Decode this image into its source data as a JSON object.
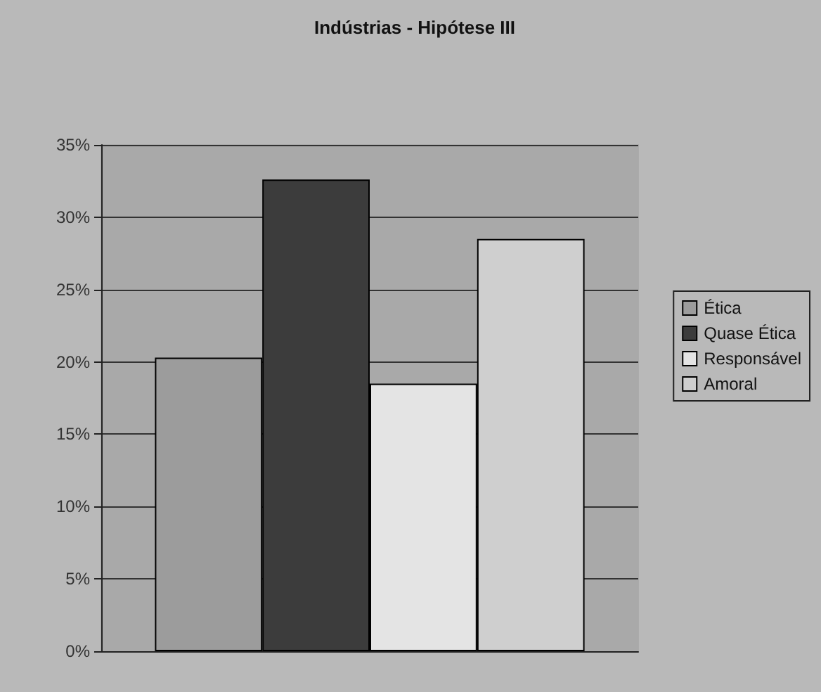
{
  "chart_data": {
    "type": "bar",
    "title": "Indústrias - Hipótese III",
    "categories": [
      null
    ],
    "series": [
      {
        "name": "Ética",
        "color": "#9c9c9c",
        "values": [
          20.3
        ]
      },
      {
        "name": "Quase Ética",
        "color": "#3c3c3c",
        "values": [
          32.6
        ]
      },
      {
        "name": "Responsável",
        "color": "#e4e4e4",
        "values": [
          18.5
        ]
      },
      {
        "name": "Amoral",
        "color": "#cfcfcf",
        "values": [
          28.5
        ]
      }
    ],
    "ylim": [
      0,
      35
    ],
    "yticks": [
      {
        "value": 0,
        "label": "0%"
      },
      {
        "value": 5,
        "label": "5%"
      },
      {
        "value": 10,
        "label": "10%"
      },
      {
        "value": 15,
        "label": "15%"
      },
      {
        "value": 20,
        "label": "20%"
      },
      {
        "value": 25,
        "label": "25%"
      },
      {
        "value": 30,
        "label": "30%"
      },
      {
        "value": 35,
        "label": "35%"
      }
    ],
    "grid": "y",
    "legend": "right"
  }
}
